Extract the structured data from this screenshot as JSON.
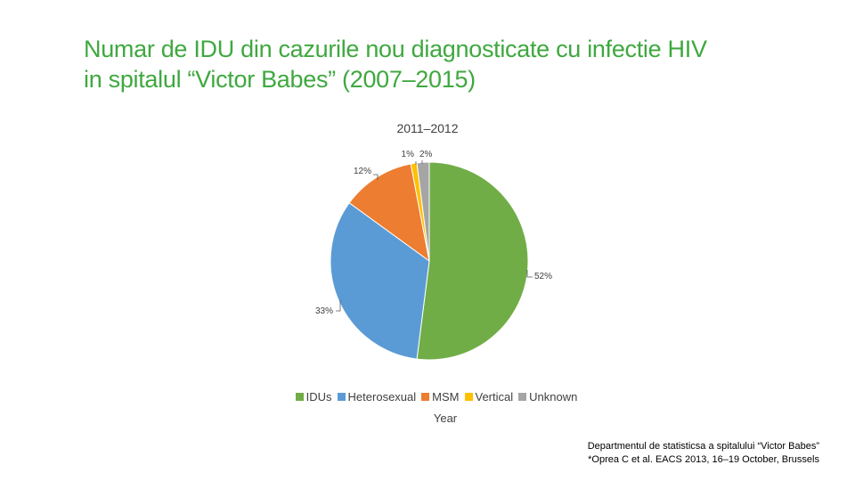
{
  "slide": {
    "title_line1": "Numar de IDU din cazurile nou diagnosticate cu infectie HIV",
    "title_line2": "in spitalul “Victor Babes” (2007–2015)"
  },
  "chart_data": {
    "type": "pie",
    "title": "2011–2012",
    "xlabel": "Year",
    "legend_position": "bottom",
    "categories": [
      "IDUs",
      "Heterosexual",
      "MSM",
      "Vertical",
      "Unknown"
    ],
    "values": [
      52,
      33,
      12,
      1,
      2
    ],
    "labels": [
      "52%",
      "33%",
      "12%",
      "1%",
      "2%"
    ],
    "colors": [
      "#70ad47",
      "#5b9bd5",
      "#ed7d31",
      "#ffc000",
      "#a5a5a5"
    ]
  },
  "source": {
    "line1": "Departmentul de statisticsa a spitalului “Victor Babes”",
    "line2": "*Oprea C et al. EACS 2013, 16–19 October, Brussels"
  }
}
